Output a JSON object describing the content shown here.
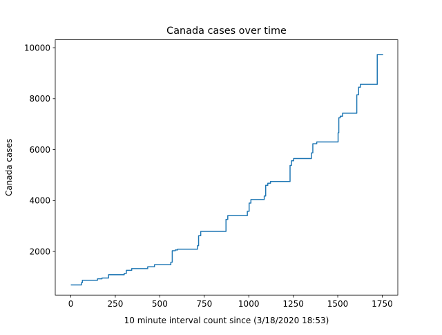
{
  "chart_data": {
    "type": "line",
    "title": "Canada cases over time",
    "xlabel": "10 minute interval count since (3/18/2020 18:53)",
    "ylabel": "Canada cases",
    "xlim": [
      -87.5,
      1837.5
    ],
    "ylim": [
      290,
      10310
    ],
    "x_ticks": [
      0,
      250,
      500,
      750,
      1000,
      1250,
      1500,
      1750
    ],
    "y_ticks": [
      2000,
      4000,
      6000,
      8000,
      10000
    ],
    "x_tick_labels": [
      "0",
      "250",
      "500",
      "750",
      "1000",
      "1250",
      "1500",
      "1750"
    ],
    "y_tick_labels": [
      "2000",
      "4000",
      "6000",
      "8000",
      "10000"
    ],
    "grid": false,
    "legend": "none",
    "step": "post",
    "series": [
      {
        "color": "#1f77b4",
        "points": [
          [
            0,
            690
          ],
          [
            55,
            690
          ],
          [
            60,
            780
          ],
          [
            65,
            870
          ],
          [
            145,
            870
          ],
          [
            150,
            930
          ],
          [
            170,
            930
          ],
          [
            175,
            960
          ],
          [
            210,
            960
          ],
          [
            212,
            1090
          ],
          [
            298,
            1090
          ],
          [
            300,
            1140
          ],
          [
            310,
            1140
          ],
          [
            312,
            1260
          ],
          [
            340,
            1260
          ],
          [
            342,
            1330
          ],
          [
            430,
            1330
          ],
          [
            432,
            1400
          ],
          [
            468,
            1400
          ],
          [
            470,
            1480
          ],
          [
            560,
            1480
          ],
          [
            562,
            1580
          ],
          [
            568,
            1580
          ],
          [
            570,
            2030
          ],
          [
            585,
            2030
          ],
          [
            587,
            2060
          ],
          [
            598,
            2060
          ],
          [
            600,
            2090
          ],
          [
            710,
            2090
          ],
          [
            712,
            2230
          ],
          [
            716,
            2230
          ],
          [
            718,
            2620
          ],
          [
            728,
            2620
          ],
          [
            730,
            2790
          ],
          [
            870,
            2790
          ],
          [
            872,
            3260
          ],
          [
            880,
            3260
          ],
          [
            882,
            3410
          ],
          [
            990,
            3410
          ],
          [
            992,
            3580
          ],
          [
            1000,
            3580
          ],
          [
            1002,
            3900
          ],
          [
            1010,
            3900
          ],
          [
            1012,
            4040
          ],
          [
            1085,
            4040
          ],
          [
            1087,
            4180
          ],
          [
            1093,
            4180
          ],
          [
            1095,
            4600
          ],
          [
            1105,
            4600
          ],
          [
            1107,
            4680
          ],
          [
            1120,
            4680
          ],
          [
            1122,
            4750
          ],
          [
            1230,
            4750
          ],
          [
            1232,
            5380
          ],
          [
            1238,
            5380
          ],
          [
            1240,
            5560
          ],
          [
            1250,
            5560
          ],
          [
            1252,
            5650
          ],
          [
            1350,
            5650
          ],
          [
            1352,
            5870
          ],
          [
            1358,
            5870
          ],
          [
            1360,
            6230
          ],
          [
            1380,
            6230
          ],
          [
            1382,
            6300
          ],
          [
            1500,
            6300
          ],
          [
            1502,
            6660
          ],
          [
            1504,
            6660
          ],
          [
            1506,
            7250
          ],
          [
            1512,
            7250
          ],
          [
            1514,
            7310
          ],
          [
            1525,
            7310
          ],
          [
            1527,
            7430
          ],
          [
            1605,
            7430
          ],
          [
            1607,
            8150
          ],
          [
            1615,
            8150
          ],
          [
            1617,
            8450
          ],
          [
            1625,
            8450
          ],
          [
            1627,
            8560
          ],
          [
            1720,
            8560
          ],
          [
            1722,
            9730
          ],
          [
            1755,
            9730
          ]
        ]
      }
    ]
  }
}
